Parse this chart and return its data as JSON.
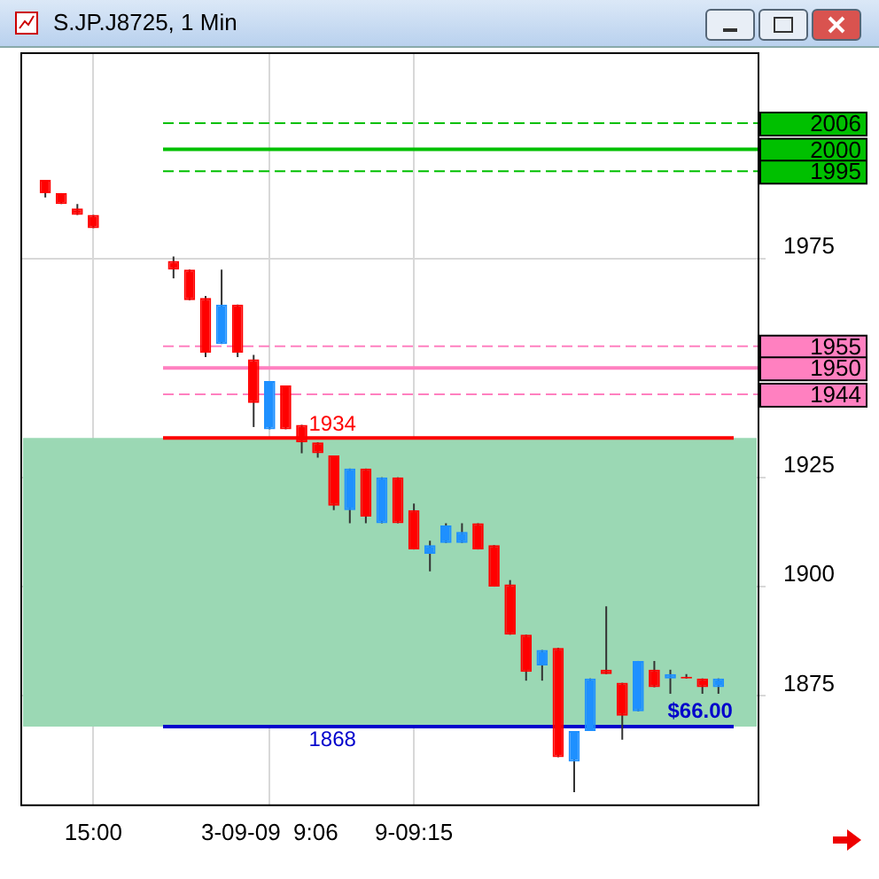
{
  "chart_data": {
    "type": "candlestick",
    "title": "S.JP.J8725, 1 Min",
    "categories": [
      null,
      null,
      null,
      null,
      "15:00",
      null,
      null,
      null,
      null,
      null,
      null,
      null,
      null,
      null,
      null,
      "3-09-09  9:06",
      null,
      null,
      null,
      null,
      null,
      null,
      null,
      null,
      "9-09:15",
      null,
      null,
      null,
      null,
      null,
      null,
      null,
      null,
      null,
      null,
      null,
      null,
      null,
      null,
      null,
      null,
      null,
      null,
      null,
      null,
      null
    ],
    "ohlc": [
      null,
      [
        1993,
        1993,
        1989,
        1990
      ],
      [
        1990,
        1990,
        1987.5,
        1987.5
      ],
      [
        1986.5,
        1987.5,
        1985,
        1985
      ],
      [
        1985,
        1985,
        1982,
        1982
      ],
      null,
      null,
      null,
      null,
      [
        1974.5,
        1975.5,
        1970.5,
        1972.5
      ],
      [
        1972.5,
        1972.5,
        1965.5,
        1965.5
      ],
      [
        1966,
        1966.5,
        1952.5,
        1953.5
      ],
      [
        1955.5,
        1972.5,
        1955.5,
        1964.5
      ],
      [
        1964.5,
        1964.5,
        1952.5,
        1953.5
      ],
      [
        1952,
        1953,
        1936.5,
        1942
      ],
      [
        1936,
        1947,
        1936,
        1947
      ],
      [
        1946,
        1946,
        1936,
        1936
      ],
      [
        1937,
        1937,
        1930.5,
        1933
      ],
      [
        1933,
        1933,
        1929.5,
        1930.5
      ],
      [
        1930,
        1930,
        1917.5,
        1918.5
      ],
      [
        1917.5,
        1927,
        1914.5,
        1927
      ],
      [
        1927,
        1927,
        1914.5,
        1916
      ],
      [
        1914.5,
        1925,
        1914.5,
        1925
      ],
      [
        1925,
        1925,
        1914.5,
        1914.5
      ],
      [
        1917.5,
        1919,
        1908.5,
        1908.5
      ],
      [
        1907.5,
        1910.5,
        1903.5,
        1909.5
      ],
      [
        1910,
        1914.5,
        1910,
        1914
      ],
      [
        1910,
        1914.5,
        1910,
        1912.5
      ],
      [
        1914.5,
        1914.5,
        1908.5,
        1908.5
      ],
      [
        1909.5,
        1909.5,
        1900,
        1900
      ],
      [
        1900.5,
        1901.5,
        1889,
        1889
      ],
      [
        1889,
        1889,
        1878.5,
        1880.5
      ],
      [
        1882,
        1885.5,
        1878.5,
        1885.5
      ],
      [
        1886,
        1886,
        1861,
        1861
      ],
      [
        1860,
        1867,
        1853,
        1867
      ],
      [
        1867,
        1879,
        1867,
        1879
      ],
      [
        1881,
        1895.5,
        1880,
        1880
      ],
      [
        1878,
        1878,
        1865,
        1870.5
      ],
      [
        1871.5,
        1883,
        1871.5,
        1883
      ],
      [
        1881,
        1883,
        1877,
        1877
      ],
      [
        1879,
        1881,
        1875.5,
        1880
      ],
      [
        1879,
        1880,
        1879,
        1879
      ],
      [
        1879,
        1879,
        1875.5,
        1877
      ],
      [
        1877,
        1879,
        1875.5,
        1879
      ],
      null,
      null
    ],
    "colors": [
      null,
      "#ff0000",
      "#ff0000",
      "#ff0000",
      "#ff0000",
      null,
      null,
      null,
      null,
      "#ff0000",
      "#ff0000",
      "#ff0000",
      "#1e90ff",
      "#ff0000",
      "#ff0000",
      "#1e90ff",
      "#ff0000",
      "#ff0000",
      "#ff0000",
      "#ff0000",
      "#1e90ff",
      "#ff0000",
      "#1e90ff",
      "#ff0000",
      "#ff0000",
      "#1e90ff",
      "#1e90ff",
      "#1e90ff",
      "#ff0000",
      "#ff0000",
      "#ff0000",
      "#ff0000",
      "#1e90ff",
      "#ff0000",
      "#1e90ff",
      "#1e90ff",
      "#ff0000",
      "#ff0000",
      "#1e90ff",
      "#ff0000",
      "#1e90ff",
      "#ff0000",
      "#ff0000",
      "#1e90ff",
      null,
      null
    ],
    "ylim": [
      1850,
      2022
    ],
    "yticks": [
      1875,
      1900,
      1925,
      1975
    ],
    "grid": true,
    "ref_lines": [
      {
        "axis": "y",
        "value": 2006,
        "label": "2006",
        "color": "#00c000",
        "line_style": "dashed"
      },
      {
        "axis": "y",
        "value": 2000,
        "label": "2000",
        "color": "#00c000",
        "line_style": "solid"
      },
      {
        "axis": "y",
        "value": 1995,
        "label": "1995",
        "color": "#00c000",
        "line_style": "dashed"
      },
      {
        "axis": "y",
        "value": 1955,
        "label": "1955",
        "color": "#ff80c0",
        "line_style": "dashed"
      },
      {
        "axis": "y",
        "value": 1950,
        "label": "1950",
        "color": "#ff80c0",
        "line_style": "solid"
      },
      {
        "axis": "y",
        "value": 1944,
        "label": "1944",
        "color": "#ff80c0",
        "line_style": "dashed"
      },
      {
        "axis": "y",
        "value": 1934,
        "color": "#ff0000",
        "line_style": "solid"
      },
      {
        "axis": "y",
        "value": 1868,
        "color": "#0000cc",
        "line_style": "solid"
      }
    ],
    "bands": [
      {
        "axis": "y",
        "from": 1868,
        "to": 1934,
        "color": "#9bd8b4"
      }
    ],
    "annotations": [
      {
        "text": "1934",
        "y": 1934
      },
      {
        "text": "1868",
        "y": 1868
      },
      {
        "text": "$66.00",
        "y": 1868
      }
    ]
  }
}
